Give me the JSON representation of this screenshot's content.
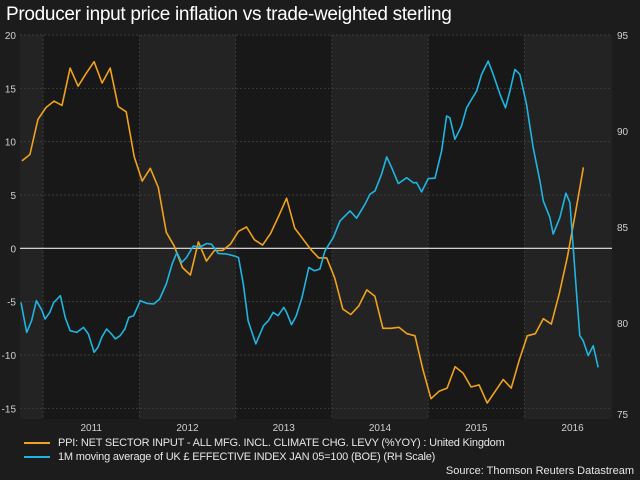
{
  "chart_data": {
    "type": "line",
    "title": "Producer input price inflation vs trade-weighted sterling",
    "x_ticks": [
      "2011",
      "2012",
      "2013",
      "2014",
      "2015",
      "2016"
    ],
    "xlim": [
      2010.76,
      2016.91
    ],
    "y_left": {
      "ylim": [
        -16,
        20
      ],
      "ticks": [
        20,
        15,
        10,
        5,
        0,
        -5,
        -10,
        -15
      ]
    },
    "y_right": {
      "ylim": [
        75,
        95
      ],
      "ticks": [
        95,
        90,
        85,
        80,
        75
      ]
    },
    "grid": true,
    "legend_position": "bottom-left",
    "source": "Source: Thomson Reuters Datastream",
    "series": [
      {
        "name": "PPI: NET SECTOR INPUT - ALL MFG. INCL. CLIMATE CHG. LEVY (%YOY) : United Kingdom",
        "axis": "left",
        "color": "#f0a21e",
        "start": 2010.78,
        "step": 0.08333,
        "values": [
          8.2,
          8.8,
          12.1,
          13.2,
          13.8,
          13.4,
          16.9,
          15.2,
          16.4,
          17.5,
          15.5,
          16.9,
          13.3,
          12.8,
          8.6,
          6.3,
          7.5,
          5.7,
          1.5,
          0.2,
          -1.8,
          -2.5,
          0.6,
          -1.2,
          -0.2,
          -0.2,
          0.4,
          1.6,
          2.0,
          0.8,
          0.3,
          1.4,
          3.0,
          4.7,
          1.9,
          0.9,
          -0.1,
          -0.9,
          -0.9,
          -2.8,
          -5.7,
          -6.2,
          -5.4,
          -3.9,
          -4.5,
          -7.5,
          -7.5,
          -7.4,
          -8.0,
          -8.2,
          -11.4,
          -14.1,
          -13.4,
          -13.1,
          -11.1,
          -11.7,
          -13.0,
          -12.8,
          -14.5,
          -13.4,
          -12.3,
          -13.1,
          -10.5,
          -8.2,
          -8.0,
          -6.6,
          -7.1,
          -4.2,
          -0.8,
          3.3,
          7.6
        ]
      },
      {
        "name": "1M moving average of UK £ EFFECTIVE INDEX JAN 05=100 (BOE) (RH Scale)",
        "axis": "right",
        "color": "#1fb5e0",
        "points": [
          [
            2010.77,
            81.07
          ],
          [
            2010.83,
            79.51
          ],
          [
            2010.88,
            80.12
          ],
          [
            2010.93,
            81.16
          ],
          [
            2010.99,
            80.64
          ],
          [
            2011.02,
            80.21
          ],
          [
            2011.07,
            80.55
          ],
          [
            2011.11,
            81.07
          ],
          [
            2011.18,
            81.42
          ],
          [
            2011.23,
            80.29
          ],
          [
            2011.28,
            79.6
          ],
          [
            2011.35,
            79.51
          ],
          [
            2011.42,
            79.77
          ],
          [
            2011.47,
            79.43
          ],
          [
            2011.53,
            78.48
          ],
          [
            2011.57,
            78.74
          ],
          [
            2011.61,
            79.26
          ],
          [
            2011.66,
            79.69
          ],
          [
            2011.71,
            79.43
          ],
          [
            2011.75,
            79.17
          ],
          [
            2011.8,
            79.34
          ],
          [
            2011.85,
            79.69
          ],
          [
            2011.89,
            80.29
          ],
          [
            2011.94,
            80.38
          ],
          [
            2012.01,
            81.16
          ],
          [
            2012.08,
            81.02
          ],
          [
            2012.15,
            80.99
          ],
          [
            2012.21,
            81.25
          ],
          [
            2012.28,
            82.03
          ],
          [
            2012.34,
            83.07
          ],
          [
            2012.39,
            83.67
          ],
          [
            2012.44,
            83.15
          ],
          [
            2012.49,
            83.41
          ],
          [
            2012.56,
            84.01
          ],
          [
            2012.63,
            83.96
          ],
          [
            2012.7,
            84.14
          ],
          [
            2012.75,
            84.1
          ],
          [
            2012.82,
            83.62
          ],
          [
            2012.91,
            83.59
          ],
          [
            2012.98,
            83.5
          ],
          [
            2013.03,
            83.41
          ],
          [
            2013.08,
            82.03
          ],
          [
            2013.13,
            80.12
          ],
          [
            2013.21,
            78.91
          ],
          [
            2013.29,
            79.86
          ],
          [
            2013.34,
            80.12
          ],
          [
            2013.39,
            80.55
          ],
          [
            2013.44,
            80.38
          ],
          [
            2013.5,
            80.81
          ],
          [
            2013.53,
            80.55
          ],
          [
            2013.58,
            79.91
          ],
          [
            2013.63,
            80.38
          ],
          [
            2013.69,
            81.33
          ],
          [
            2013.76,
            82.89
          ],
          [
            2013.82,
            82.72
          ],
          [
            2013.876,
            82.81
          ],
          [
            2013.928,
            83.76
          ],
          [
            2014.015,
            84.45
          ],
          [
            2014.084,
            85.32
          ],
          [
            2014.188,
            85.84
          ],
          [
            2014.257,
            85.46
          ],
          [
            2014.344,
            86.19
          ],
          [
            2014.396,
            86.71
          ],
          [
            2014.448,
            86.88
          ],
          [
            2014.517,
            87.75
          ],
          [
            2014.569,
            88.65
          ],
          [
            2014.621,
            88.09
          ],
          [
            2014.69,
            87.26
          ],
          [
            2014.777,
            87.57
          ],
          [
            2014.846,
            87.3
          ],
          [
            2014.88,
            87.31
          ],
          [
            2014.932,
            86.83
          ],
          [
            2015.001,
            87.52
          ],
          [
            2015.071,
            87.54
          ],
          [
            2015.14,
            88.96
          ],
          [
            2015.192,
            90.78
          ],
          [
            2015.226,
            90.69
          ],
          [
            2015.278,
            89.57
          ],
          [
            2015.347,
            90.26
          ],
          [
            2015.399,
            91.21
          ],
          [
            2015.451,
            91.65
          ],
          [
            2015.503,
            92.08
          ],
          [
            2015.555,
            92.95
          ],
          [
            2015.624,
            93.64
          ],
          [
            2015.676,
            92.95
          ],
          [
            2015.746,
            91.91
          ],
          [
            2015.804,
            91.21
          ],
          [
            2015.849,
            92.08
          ],
          [
            2015.901,
            93.21
          ],
          [
            2015.953,
            92.95
          ],
          [
            2016.022,
            91.39
          ],
          [
            2016.091,
            89.13
          ],
          [
            2016.161,
            87.4
          ],
          [
            2016.196,
            86.36
          ],
          [
            2016.265,
            85.49
          ],
          [
            2016.299,
            84.63
          ],
          [
            2016.369,
            85.49
          ],
          [
            2016.431,
            86.76
          ],
          [
            2016.473,
            86.27
          ],
          [
            2016.507,
            83.93
          ],
          [
            2016.542,
            81.51
          ],
          [
            2016.576,
            79.34
          ],
          [
            2016.611,
            79.08
          ],
          [
            2016.663,
            78.3
          ],
          [
            2016.715,
            78.82
          ],
          [
            2016.767,
            77.69
          ]
        ]
      }
    ]
  }
}
